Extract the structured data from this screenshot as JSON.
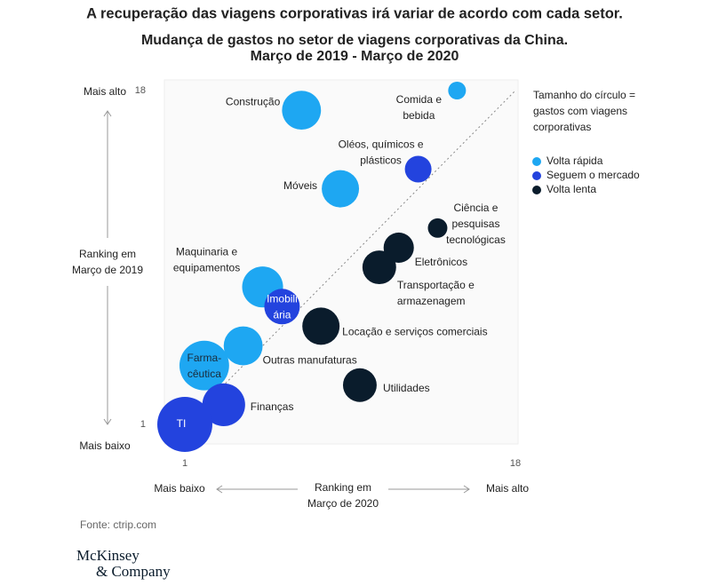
{
  "headline": "A recuperação das viagens corporativas irá variar de acordo com cada setor.",
  "chart_data": {
    "type": "bubble",
    "title": [
      "Mudança de gastos no setor de viagens corporativas da China.",
      "Março de 2019 - Março de 2020"
    ],
    "ylabel": [
      "Ranking em",
      "Março de 2019"
    ],
    "ylabel_top": "Mais alto",
    "ylabel_bottom": "Mais baixo",
    "xlabel": [
      "Ranking em",
      "Março de 2020"
    ],
    "xlabel_left": "Mais baixo",
    "xlabel_right": "Mais alto",
    "size_note": [
      "Tamanho do círculo =",
      "gastos com viagens",
      "corporativas"
    ],
    "xlim": [
      1,
      18
    ],
    "ylim": [
      1,
      18
    ],
    "xticks": [
      1,
      18
    ],
    "yticks": [
      1,
      18
    ],
    "diagonal": true,
    "series": [
      {
        "name": "Volta rápida",
        "color": "#1ea7f2",
        "x": [
          15,
          7,
          9,
          5,
          4,
          2
        ],
        "values": [
          18,
          17,
          13,
          8,
          5,
          4
        ],
        "sizes": [
          100,
          480,
          440,
          530,
          480,
          780
        ],
        "labels": [
          [
            "Comida e",
            "bebida"
          ],
          [
            "Construção"
          ],
          [
            "Móveis"
          ],
          [
            "Maquinaria e",
            "equipamentos"
          ],
          [
            "Outras manufaturas"
          ],
          [
            "Farma-",
            "cêutica"
          ]
        ]
      },
      {
        "name": "Seguem o mercado",
        "color": "#2343de",
        "x": [
          13,
          6,
          3,
          1
        ],
        "values": [
          14,
          7,
          2,
          1
        ],
        "sizes": [
          225,
          400,
          580,
          960
        ],
        "labels": [
          [
            "Oléos, químicos e",
            "plásticos"
          ],
          [
            "Imobili",
            "ária"
          ],
          [
            "Finanças"
          ],
          [
            "TI"
          ]
        ]
      },
      {
        "name": "Volta lenta",
        "color": "#0a1c2c",
        "x": [
          14,
          12,
          11,
          8,
          10
        ],
        "values": [
          11,
          10,
          9,
          6,
          3
        ],
        "sizes": [
          120,
          290,
          360,
          440,
          360
        ],
        "labels": [
          [
            "Ciência e",
            "pesquisas",
            "tecnológicas"
          ],
          [
            "Eletrônicos"
          ],
          [
            "Transportação e",
            "armazenagem"
          ],
          [
            "Locação e serviços comerciais"
          ],
          [
            "Utilidades"
          ]
        ]
      }
    ]
  },
  "source": "Fonte: ctrip.com",
  "logo": [
    "McKinsey",
    "& Company"
  ]
}
